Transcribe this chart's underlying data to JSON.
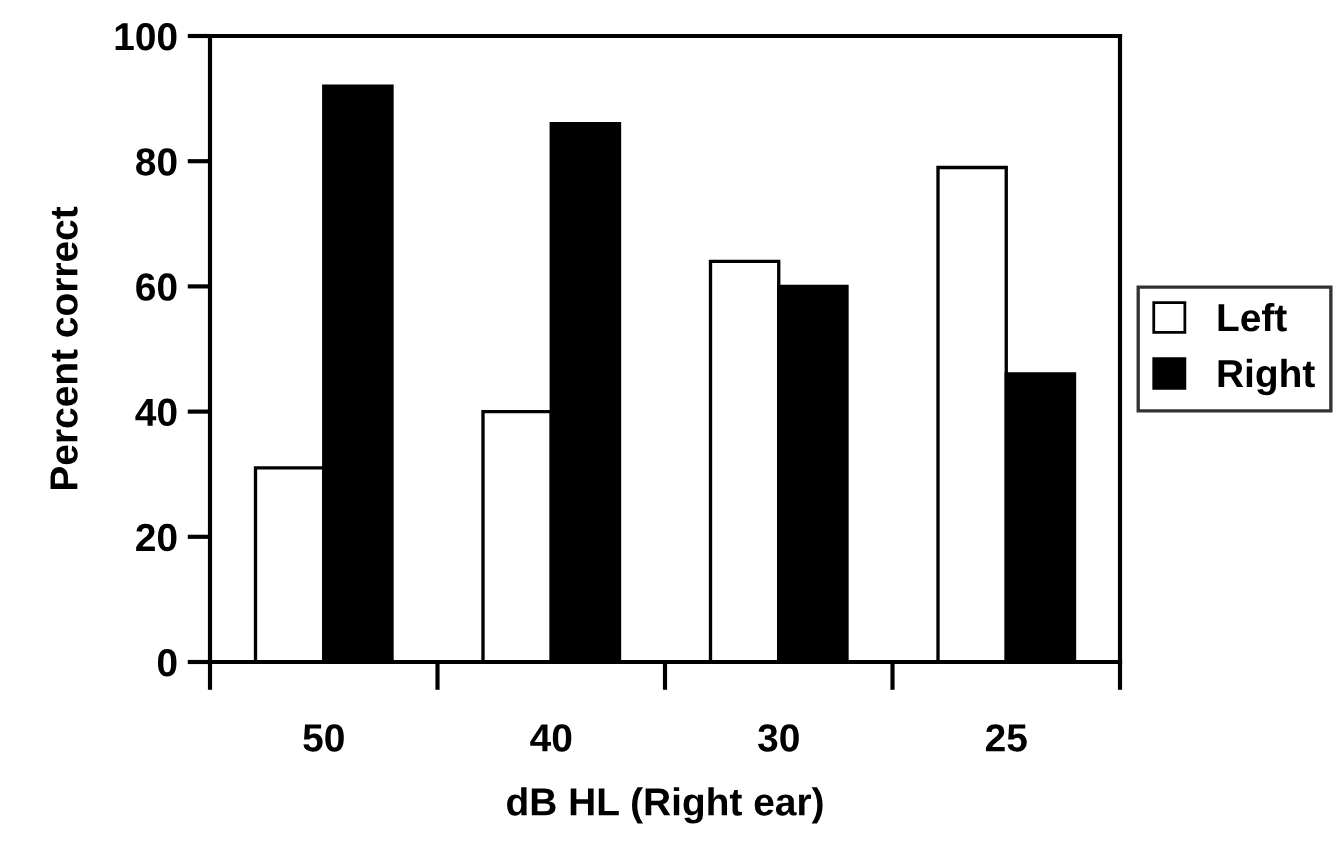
{
  "chart_data": {
    "type": "bar",
    "xlabel": "dB HL (Right ear)",
    "ylabel": "Percent correct",
    "categories": [
      "50",
      "40",
      "30",
      "25"
    ],
    "series": [
      {
        "name": "Left",
        "color": "#ffffff",
        "values": [
          31,
          40,
          64,
          79
        ]
      },
      {
        "name": "Right",
        "color": "#000000",
        "values": [
          92,
          86,
          60,
          46
        ]
      }
    ],
    "ylim": [
      0,
      100
    ],
    "yticks": [
      0,
      20,
      40,
      60,
      80,
      100
    ],
    "grid": false,
    "legend": "right"
  }
}
